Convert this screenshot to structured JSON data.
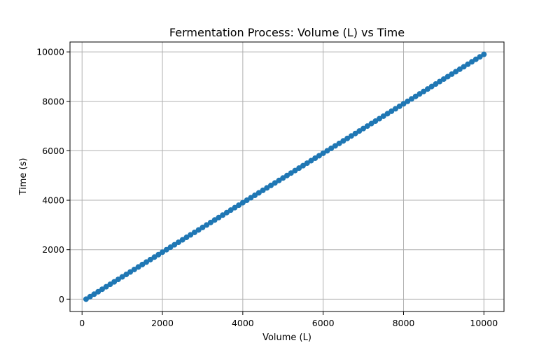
{
  "chart_data": {
    "type": "line",
    "title": "Fermentation Process: Volume (L) vs Time",
    "xlabel": "Volume (L)",
    "ylabel": "Time (s)",
    "xlim": [
      -300,
      10500
    ],
    "ylim": [
      -500,
      10400
    ],
    "xticks": [
      0,
      2000,
      4000,
      6000,
      8000,
      10000
    ],
    "yticks": [
      0,
      2000,
      4000,
      6000,
      8000,
      10000
    ],
    "grid": true,
    "marker": "circle",
    "series_color": "#1f77b4",
    "series": [
      {
        "x_start": 100,
        "x_end": 10000,
        "x_step": 100,
        "y_start": 0,
        "y_end": 9900,
        "y_step": 100
      }
    ]
  }
}
